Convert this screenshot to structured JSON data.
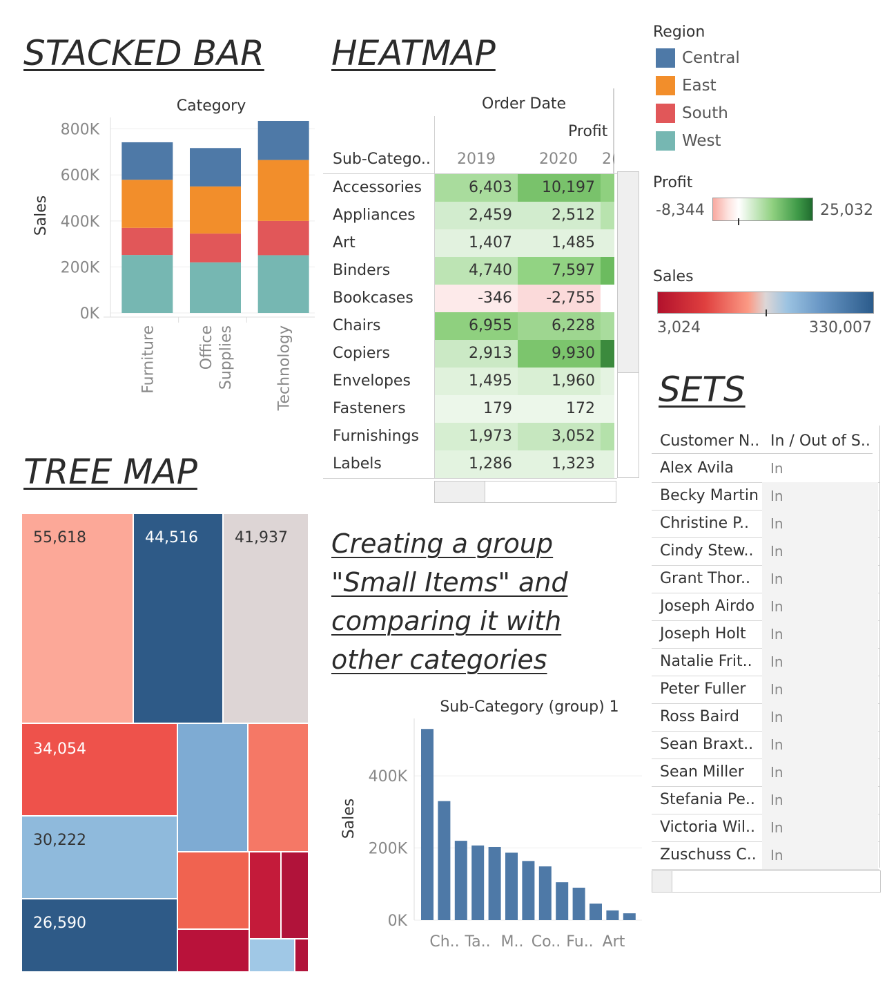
{
  "titles": {
    "stacked_bar": "STACKED BAR",
    "heatmap": "HEATMAP",
    "tree_map": "TREE MAP",
    "sets": "SETS",
    "group_line1": "Creating a group",
    "group_line2": "\"Small Items\" and",
    "group_line3": "comparing it with",
    "group_line4": "other categories"
  },
  "colors": {
    "central": "#4e79a7",
    "east": "#f28e2b",
    "south": "#e15759",
    "west": "#76b7b2",
    "bar_blue": "#4e79a7"
  },
  "legend": {
    "region_title": "Region",
    "regions": [
      {
        "label": "Central",
        "color": "#4e79a7"
      },
      {
        "label": "East",
        "color": "#f28e2b"
      },
      {
        "label": "South",
        "color": "#e15759"
      },
      {
        "label": "West",
        "color": "#76b7b2"
      }
    ],
    "profit_title": "Profit",
    "profit_min": "-8,344",
    "profit_max": "25,032",
    "sales_title": "Sales",
    "sales_min": "3,024",
    "sales_max": "330,007"
  },
  "heatmap": {
    "header_top": "Order Date",
    "header_measure": "Profit",
    "row_header": "Sub-Catego..",
    "year_labels": [
      "2019",
      "2020",
      "2("
    ],
    "rows": [
      {
        "label": "Accessories",
        "v2019": "6,403",
        "v2020": "10,197",
        "c2019": "#a9dc9d",
        "c2020": "#79c26b",
        "c3": "#8fd07f"
      },
      {
        "label": "Appliances",
        "v2019": "2,459",
        "v2020": "2,512",
        "c2019": "#d2ecce",
        "c2020": "#d2ecce",
        "c3": "#b8e3ae"
      },
      {
        "label": "Art",
        "v2019": "1,407",
        "v2020": "1,485",
        "c2019": "#e2f2df",
        "c2020": "#e2f2df",
        "c3": "#e2f2df"
      },
      {
        "label": "Binders",
        "v2019": "4,740",
        "v2020": "7,597",
        "c2019": "#bde4b4",
        "c2020": "#92d383",
        "c3": "#6cbb5f"
      },
      {
        "label": "Bookcases",
        "v2019": "-346",
        "v2020": "-2,755",
        "c2019": "#fdeaea",
        "c2020": "#fbdada",
        "c3": "#ffffff"
      },
      {
        "label": "Chairs",
        "v2019": "6,955",
        "v2020": "6,228",
        "c2019": "#8fd07f",
        "c2020": "#9ed690",
        "c3": "#a9dc9d"
      },
      {
        "label": "Copiers",
        "v2019": "2,913",
        "v2020": "9,930",
        "c2019": "#cbe9c5",
        "c2020": "#7cc56d",
        "c3": "#3b8a3d"
      },
      {
        "label": "Envelopes",
        "v2019": "1,495",
        "v2020": "1,960",
        "c2019": "#e0f2dc",
        "c2020": "#d9efd4",
        "c3": "#e4f3e1"
      },
      {
        "label": "Fasteners",
        "v2019": "179",
        "v2020": "172",
        "c2019": "#ecf7ea",
        "c2020": "#ecf7ea",
        "c3": "#ecf7ea"
      },
      {
        "label": "Furnishings",
        "v2019": "1,973",
        "v2020": "3,052",
        "c2019": "#d6eed1",
        "c2020": "#c6e7bf",
        "c3": "#b4e1aa"
      },
      {
        "label": "Labels",
        "v2019": "1,286",
        "v2020": "1,323",
        "c2019": "#e3f3e0",
        "c2020": "#e3f3e0",
        "c3": "#e3f3e0"
      }
    ]
  },
  "treemap": {
    "labels": [
      "55,618",
      "44,516",
      "41,937",
      "34,054",
      "30,222",
      "26,590"
    ]
  },
  "sets": {
    "col_name": "Customer N..",
    "col_inout": "In / Out of S..",
    "rows": [
      {
        "name": "Alex Avila",
        "value": "In"
      },
      {
        "name": "Becky Martin",
        "value": "In"
      },
      {
        "name": "Christine P..",
        "value": "In"
      },
      {
        "name": "Cindy Stew..",
        "value": "In"
      },
      {
        "name": "Grant Thor..",
        "value": "In"
      },
      {
        "name": "Joseph Airdo",
        "value": "In"
      },
      {
        "name": "Joseph Holt",
        "value": "In"
      },
      {
        "name": "Natalie Frit..",
        "value": "In"
      },
      {
        "name": "Peter Fuller",
        "value": "In"
      },
      {
        "name": "Ross Baird",
        "value": "In"
      },
      {
        "name": "Sean Braxt..",
        "value": "In"
      },
      {
        "name": "Sean Miller",
        "value": "In"
      },
      {
        "name": "Stefania Pe..",
        "value": "In"
      },
      {
        "name": "Victoria Wil..",
        "value": "In"
      },
      {
        "name": "Zuschuss C..",
        "value": "In"
      }
    ]
  },
  "chart_data": [
    {
      "type": "bar",
      "stacked": true,
      "title": "Category",
      "ylabel": "Sales",
      "categories": [
        "Furniture",
        "Office Supplies",
        "Technology"
      ],
      "ylim": [
        0,
        850000
      ],
      "yticks": [
        "0K",
        "200K",
        "400K",
        "600K",
        "800K"
      ],
      "ytick_values": [
        0,
        200000,
        400000,
        600000,
        800000
      ],
      "series": [
        {
          "name": "West",
          "color": "#76b7b2",
          "values": [
            252000,
            220000,
            251000
          ]
        },
        {
          "name": "South",
          "color": "#e15759",
          "values": [
            118000,
            125000,
            149000
          ]
        },
        {
          "name": "East",
          "color": "#f28e2b",
          "values": [
            209000,
            205000,
            265000
          ]
        },
        {
          "name": "Central",
          "color": "#4e79a7",
          "values": [
            163000,
            167000,
            170000
          ]
        }
      ]
    },
    {
      "type": "bar",
      "title": "Sub-Category (group) 1",
      "ylabel": "Sales",
      "ylim": [
        0,
        540000
      ],
      "yticks": [
        "0K",
        "200K",
        "400K"
      ],
      "ytick_values": [
        0,
        200000,
        400000
      ],
      "x_tick_labels": [
        "Ch..",
        "Ta..",
        "M..",
        "Co..",
        "Fu..",
        "Art"
      ],
      "values": [
        530000,
        330000,
        220000,
        207000,
        203000,
        187000,
        164000,
        149000,
        105000,
        90000,
        46000,
        27000,
        19000
      ]
    }
  ]
}
